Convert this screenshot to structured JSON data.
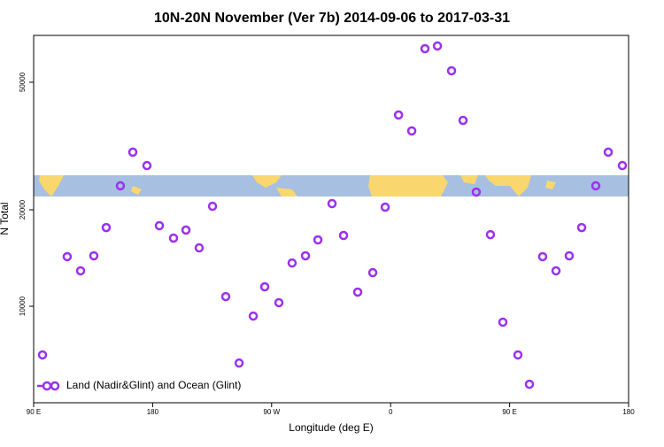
{
  "chart_data": {
    "type": "scatter",
    "title": "10N-20N November (Ver 7b)   2014-09-06 to 2017-03-31",
    "x_label": "Longitude (deg E)",
    "y_label": "N Total",
    "xlim": [
      90,
      540
    ],
    "xticks": [
      {
        "value": 90,
        "label": "90 E"
      },
      180,
      {
        "value": 270,
        "label": "90 W"
      },
      {
        "value": 360,
        "label": "0"
      },
      {
        "value": 450,
        "label": "90 E"
      },
      {
        "value": 540,
        "label": "180"
      }
    ],
    "ylim": [
      5000,
      70000
    ],
    "log_y": true,
    "yticks": [
      10000,
      20000,
      50000
    ],
    "legend": "bottom-left",
    "series": [
      {
        "name": "Land (Nadir&Glint) and Ocean (Glint)",
        "color": "#9b30f0",
        "x": [
          96.7,
          115.4,
          125.5,
          135.5,
          144.9,
          155.6,
          165,
          175.7,
          185.1,
          195.8,
          205.2,
          215.2,
          225.3,
          235.3,
          245.4,
          256.1,
          264.8,
          275.5,
          285.5,
          295.6,
          305,
          315.7,
          324.4,
          335.1,
          346.5,
          355.9,
          366,
          376,
          386,
          395.4,
          406.1,
          414.8,
          424.8,
          435.5,
          444.9,
          456.3,
          465,
          475,
          485.1,
          495.1,
          504.5,
          515.2,
          524.6,
          535.3
        ],
        "values": [
          7050,
          14280,
          12900,
          14370,
          17600,
          23760,
          30260,
          27480,
          17840,
          16320,
          17290,
          15210,
          20510,
          10720,
          6650,
          9320,
          11500,
          10260,
          13650,
          14370,
          16110,
          20910,
          16630,
          11070,
          12730,
          20380,
          39520,
          35250,
          63640,
          64890,
          54290,
          38020,
          22720,
          16730,
          8920,
          7050,
          5710,
          14280,
          12900,
          14370,
          17600,
          23760,
          30260,
          27480
        ]
      }
    ]
  }
}
